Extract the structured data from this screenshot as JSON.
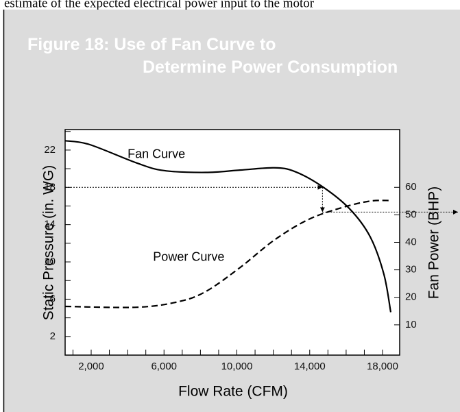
{
  "document_text": "estimate of the expected electrical power input to the motor",
  "chart_data": {
    "type": "line",
    "title": "Figure 18: Use of Fan Curve to",
    "title_line2": "Determine Power Consumption",
    "xlabel": "Flow Rate (CFM)",
    "ylabel": "Static Pressure (in. WG)",
    "y2label": "Fan Power (BHP)",
    "xlim": [
      570,
      18940
    ],
    "xticks": [
      {
        "value": 2000,
        "label": "2,000"
      },
      {
        "value": 6000,
        "label": "6,000"
      },
      {
        "value": 10000,
        "label": "10,000"
      },
      {
        "value": 14000,
        "label": "14,000"
      },
      {
        "value": 18000,
        "label": "18,000"
      }
    ],
    "xminorticks": [
      1000,
      3000,
      4000,
      5000,
      7000,
      8000,
      9000,
      11000,
      12000,
      13000,
      15000,
      16000,
      17000
    ],
    "ylim": [
      0,
      24.2
    ],
    "yticks": [
      2,
      6,
      10,
      14,
      18,
      22
    ],
    "yminorticks": [
      4,
      8,
      12,
      16,
      20,
      24
    ],
    "y2lim": [
      -1,
      81
    ],
    "y2ticks": [
      10,
      20,
      30,
      40,
      50,
      60
    ],
    "series": [
      {
        "name": "Fan Curve",
        "color": "#000000",
        "dash": "solid",
        "x": [
          570,
          1900,
          4520,
          6000,
          8290,
          10170,
          12050,
          13180,
          14680,
          16190,
          17320,
          18070,
          18450
        ],
        "values": [
          23.0,
          22.6,
          20.6,
          19.8,
          19.6,
          19.85,
          20.1,
          19.7,
          18.1,
          15.7,
          12.7,
          8.7,
          4.6
        ],
        "label_at": [
          4000,
          21.5
        ]
      },
      {
        "name": "Power Curve",
        "color": "#000000",
        "dash": "dashed",
        "axis": "y2",
        "x": [
          570,
          4520,
          6780,
          8290,
          10170,
          12050,
          13930,
          15810,
          17320,
          18450
        ],
        "values": [
          16.7,
          16.4,
          18.4,
          22.1,
          30.8,
          40.8,
          48.3,
          52.7,
          55.0,
          55.2
        ],
        "label_at": [
          5400,
          34.5
        ]
      }
    ],
    "operating_point": {
      "flow": 14700,
      "pressure": 18,
      "power": 51
    }
  }
}
